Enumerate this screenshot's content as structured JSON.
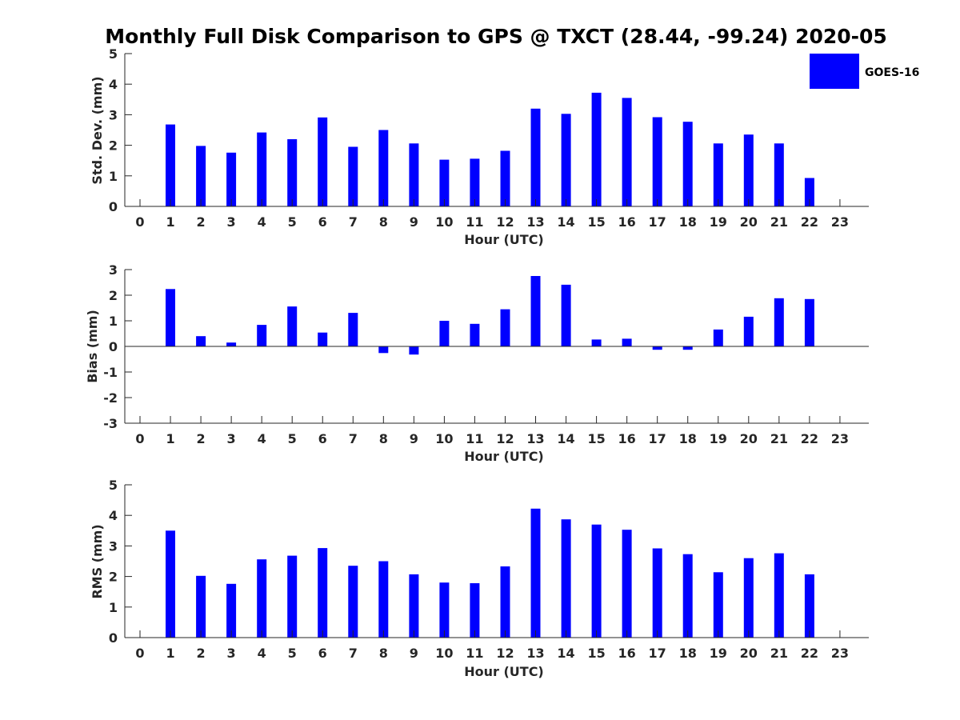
{
  "title": "Monthly Full Disk Comparison to GPS @ TXCT (28.44, -99.24) 2020-05",
  "legend": {
    "label": "GOES-16",
    "color": "#0000ff"
  },
  "chart_data": [
    {
      "type": "bar",
      "xlabel": "Hour (UTC)",
      "ylabel": "Std. Dev. (mm)",
      "ylim": [
        0,
        5
      ],
      "yticks": [
        0,
        1,
        2,
        3,
        4,
        5
      ],
      "categories": [
        0,
        1,
        2,
        3,
        4,
        5,
        6,
        7,
        8,
        9,
        10,
        11,
        12,
        13,
        14,
        15,
        16,
        17,
        18,
        19,
        20,
        21,
        22,
        23
      ],
      "series": [
        {
          "name": "GOES-16",
          "color": "#0000ff",
          "values": [
            null,
            2.68,
            1.98,
            1.76,
            2.42,
            2.2,
            2.91,
            1.95,
            2.5,
            2.06,
            1.53,
            1.56,
            1.82,
            3.2,
            3.03,
            3.72,
            3.55,
            2.92,
            2.77,
            2.06,
            2.35,
            2.06,
            0.93,
            null
          ]
        }
      ]
    },
    {
      "type": "bar",
      "xlabel": "Hour (UTC)",
      "ylabel": "Bias (mm)",
      "ylim": [
        -3,
        3
      ],
      "yticks": [
        -3,
        -2,
        -1,
        0,
        1,
        2,
        3
      ],
      "categories": [
        0,
        1,
        2,
        3,
        4,
        5,
        6,
        7,
        8,
        9,
        10,
        11,
        12,
        13,
        14,
        15,
        16,
        17,
        18,
        19,
        20,
        21,
        22,
        23
      ],
      "series": [
        {
          "name": "GOES-16",
          "color": "#0000ff",
          "values": [
            null,
            2.24,
            0.4,
            0.15,
            0.84,
            1.56,
            0.54,
            1.31,
            -0.26,
            -0.32,
            1.0,
            0.88,
            1.45,
            2.75,
            2.41,
            0.27,
            0.3,
            -0.13,
            -0.13,
            0.66,
            1.16,
            1.88,
            1.85,
            null
          ]
        }
      ]
    },
    {
      "type": "bar",
      "xlabel": "Hour (UTC)",
      "ylabel": "RMS (mm)",
      "ylim": [
        0,
        5
      ],
      "yticks": [
        0,
        1,
        2,
        3,
        4,
        5
      ],
      "categories": [
        0,
        1,
        2,
        3,
        4,
        5,
        6,
        7,
        8,
        9,
        10,
        11,
        12,
        13,
        14,
        15,
        16,
        17,
        18,
        19,
        20,
        21,
        22,
        23
      ],
      "series": [
        {
          "name": "GOES-16",
          "color": "#0000ff",
          "values": [
            null,
            3.5,
            2.02,
            1.76,
            2.56,
            2.68,
            2.93,
            2.35,
            2.5,
            2.07,
            1.8,
            1.78,
            2.33,
            4.22,
            3.87,
            3.7,
            3.53,
            2.92,
            2.73,
            2.14,
            2.6,
            2.76,
            2.07,
            null
          ]
        }
      ]
    }
  ]
}
